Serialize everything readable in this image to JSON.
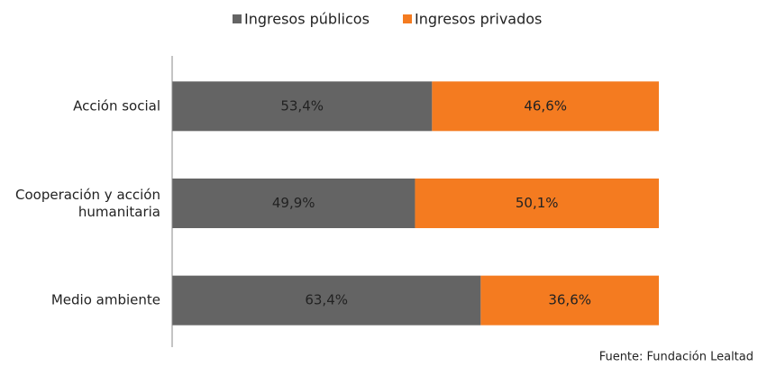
{
  "chart_data": {
    "type": "stacked-bar-horizontal",
    "categories": [
      "Acción social",
      "Cooperación y acción humanitaria",
      "Medio ambiente"
    ],
    "series": [
      {
        "name": "Ingresos públicos",
        "color": "#646464",
        "values": [
          53.4,
          49.9,
          63.4
        ],
        "value_labels": [
          "53,4%",
          "49,9%",
          "63,4%"
        ]
      },
      {
        "name": "Ingresos privados",
        "color": "#f47b20",
        "values": [
          46.6,
          50.1,
          36.6
        ],
        "value_labels": [
          "46,6%",
          "50,1%",
          "36,6%"
        ]
      }
    ],
    "xlim": [
      0,
      100
    ],
    "legend": "top",
    "source": "Fuente: Fundación Lealtad"
  }
}
